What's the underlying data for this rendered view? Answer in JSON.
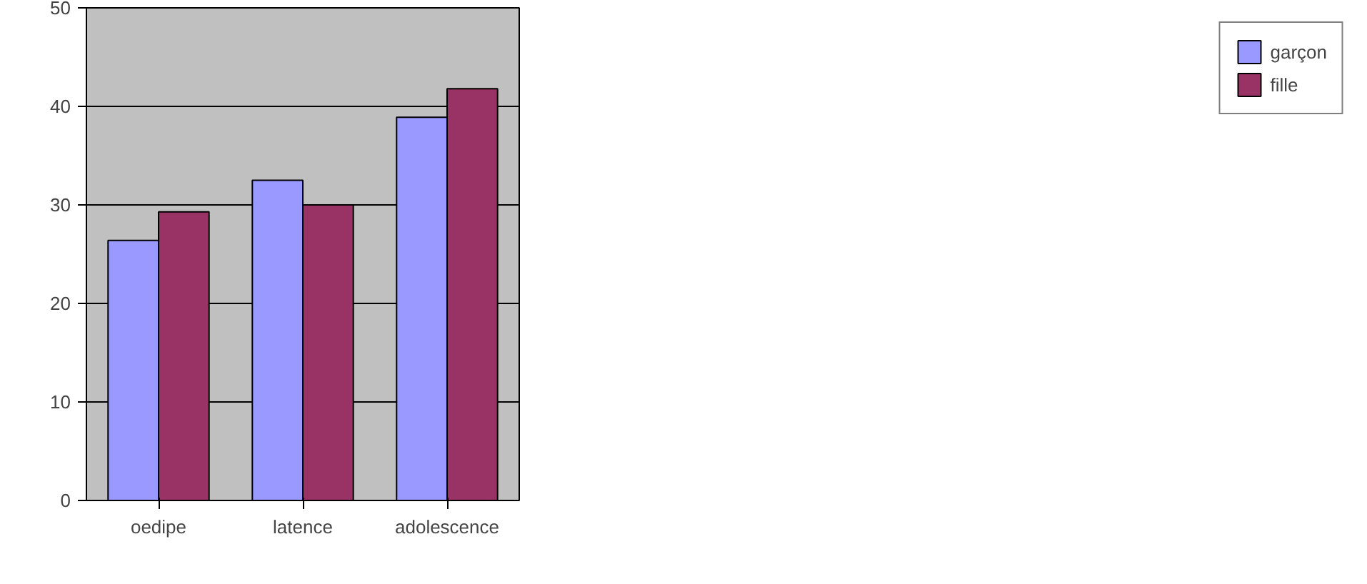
{
  "chart_data": {
    "type": "bar",
    "categories": [
      "oedipe",
      "latence",
      "adolescence"
    ],
    "series": [
      {
        "name": "garçon",
        "color": "#9999ff",
        "values": [
          26.4,
          32.5,
          38.9
        ]
      },
      {
        "name": "fille",
        "color": "#993366",
        "values": [
          29.3,
          30,
          41.8
        ]
      }
    ],
    "ylim": [
      0,
      50
    ],
    "yticks": [
      0,
      10,
      20,
      30,
      40,
      50
    ],
    "grid": "y",
    "legend": "right"
  }
}
